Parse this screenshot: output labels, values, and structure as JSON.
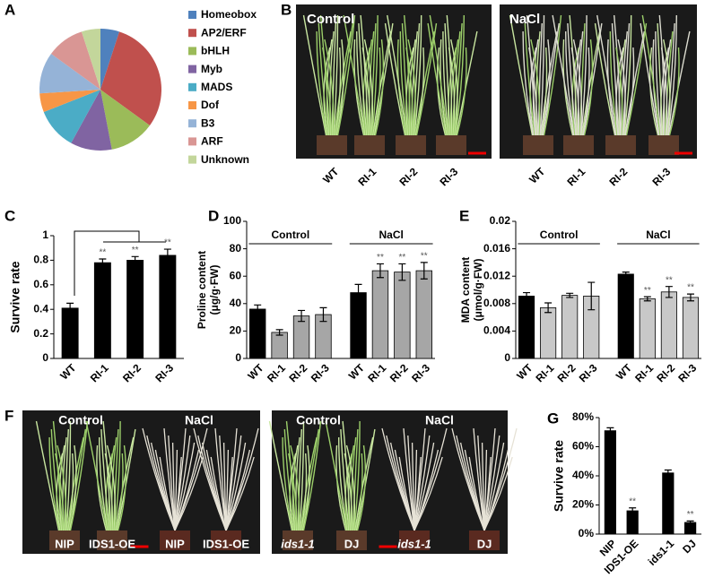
{
  "panel_letters": [
    "A",
    "B",
    "C",
    "D",
    "E",
    "F",
    "G"
  ],
  "chart_data": [
    {
      "type": "pie",
      "categories": [
        "Homeobox",
        "AP2/ERF",
        "bHLH",
        "Myb",
        "MADS",
        "Dof",
        "B3",
        "ARF",
        "Unknown"
      ],
      "values": [
        5,
        30,
        12,
        11,
        11,
        5,
        11,
        10,
        5
      ],
      "colors": [
        "#4f81bd",
        "#c0504d",
        "#9bbb59",
        "#8064a2",
        "#4bacc6",
        "#f79646",
        "#95b3d7",
        "#d99694",
        "#c3d69b"
      ]
    },
    {
      "type": "bar",
      "ylabel": "Survive rate",
      "categories": [
        "WT",
        "RI-1",
        "RI-2",
        "RI-3"
      ],
      "values": [
        0.41,
        0.78,
        0.8,
        0.84
      ],
      "errors": [
        0.04,
        0.03,
        0.03,
        0.05
      ],
      "color": "#000000",
      "significance": [
        null,
        "**",
        "**",
        "**"
      ],
      "ylim": [
        0,
        1
      ],
      "yticks": [
        0,
        0.2,
        0.4,
        0.6,
        0.8,
        1
      ]
    },
    {
      "type": "bar",
      "ylabel": "Proline content",
      "yunit": "(μg/g·FW)",
      "groups": [
        "Control",
        "NaCl"
      ],
      "categories": [
        "WT",
        "RI-1",
        "RI-2",
        "RI-3",
        "WT",
        "RI-1",
        "RI-2",
        "RI-3"
      ],
      "values": [
        36,
        19,
        31,
        32,
        48,
        64,
        63,
        64
      ],
      "errors": [
        3,
        2,
        4,
        5,
        6,
        5,
        6,
        6
      ],
      "colors": [
        "#000000",
        "#a6a6a6",
        "#a6a6a6",
        "#a6a6a6",
        "#000000",
        "#a6a6a6",
        "#a6a6a6",
        "#a6a6a6"
      ],
      "significance": [
        null,
        null,
        null,
        null,
        null,
        "**",
        "**",
        "**"
      ],
      "ylim": [
        0,
        100
      ],
      "yticks": [
        0,
        20,
        40,
        60,
        80,
        100
      ]
    },
    {
      "type": "bar",
      "ylabel": "MDA content",
      "yunit": "(μmol/g·FW)",
      "groups": [
        "Control",
        "NaCl"
      ],
      "categories": [
        "WT",
        "RI-1",
        "RI-2",
        "RI-3",
        "WT",
        "RI-1",
        "RI-2",
        "RI-3"
      ],
      "values": [
        0.0091,
        0.0074,
        0.0092,
        0.0091,
        0.0123,
        0.0087,
        0.0097,
        0.0089
      ],
      "errors": [
        0.0005,
        0.0007,
        0.0003,
        0.002,
        0.0003,
        0.0003,
        0.0008,
        0.0005
      ],
      "colors": [
        "#000000",
        "#c8c8c8",
        "#c8c8c8",
        "#c8c8c8",
        "#000000",
        "#c8c8c8",
        "#c8c8c8",
        "#c8c8c8"
      ],
      "significance": [
        null,
        null,
        null,
        null,
        null,
        "**",
        "**",
        "**"
      ],
      "ylim": [
        0,
        0.02
      ],
      "yticks": [
        0,
        0.004,
        0.008,
        0.012,
        0.016,
        0.02
      ]
    },
    {
      "type": "bar",
      "ylabel": "Survive rate",
      "categories": [
        "NIP",
        "IDS1-OE",
        "ids1-1",
        "DJ"
      ],
      "values": [
        71,
        16,
        42,
        8
      ],
      "errors": [
        2,
        2,
        2,
        1
      ],
      "color": "#000000",
      "significance": [
        null,
        "**",
        null,
        "**"
      ],
      "ylim": [
        0,
        80
      ],
      "yticks": [
        {
          "value": 0,
          "label": "0%"
        },
        {
          "value": 20,
          "label": "20%"
        },
        {
          "value": 40,
          "label": "40%"
        },
        {
          "value": 60,
          "label": "60%"
        },
        {
          "value": 80,
          "label": "80%"
        }
      ]
    }
  ],
  "photos": {
    "B": {
      "conditions": [
        "Control",
        "NaCl"
      ],
      "genotypes": [
        "WT",
        "RI-1",
        "RI-2",
        "RI-3"
      ]
    },
    "F": [
      {
        "conditions": [
          "Control",
          "NaCl"
        ],
        "genotypes": [
          "NIP",
          "IDS1-OE",
          "NIP",
          "IDS1-OE"
        ]
      },
      {
        "conditions": [
          "Control",
          "NaCl"
        ],
        "genotypes": [
          "ids1-1",
          "DJ",
          "ids1-1",
          "DJ"
        ]
      }
    ]
  }
}
